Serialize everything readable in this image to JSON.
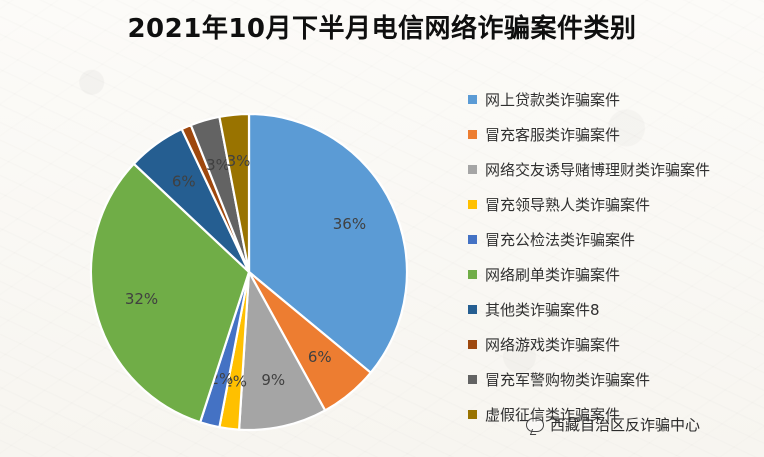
{
  "title": "2021年10月下半月电信网络诈骗案件类别",
  "chart_data": {
    "type": "pie",
    "title": "2021年10月下半月电信网络诈骗案件类别",
    "categories": [
      "网上贷款类诈骗案件",
      "冒充客服类诈骗案件",
      "网络交友诱导赌博理财类诈骗案件",
      "冒充领导熟人类诈骗案件",
      "冒充公检法类诈骗案件",
      "网络刷单类诈骗案件",
      "其他类诈骗案件8",
      "网络游戏类诈骗案件",
      "冒充军警购物类诈骗案件",
      "虚假征信类诈骗案件"
    ],
    "values": [
      36,
      6,
      9,
      2,
      2,
      32,
      6,
      1,
      3,
      3
    ],
    "labels": [
      "36%",
      "6%",
      "9%",
      "2%",
      "2%",
      "32%",
      "6%",
      "",
      "3%",
      "3%"
    ],
    "colors": [
      "#5b9bd5",
      "#ed7d31",
      "#a5a5a5",
      "#ffc000",
      "#4472c4",
      "#70ad47",
      "#255e91",
      "#9e480e",
      "#636363",
      "#997300"
    ],
    "legend_position": "right"
  },
  "watermark": {
    "text": "西藏自治区反诈骗中心",
    "icon": "chat-bubble-icon"
  }
}
